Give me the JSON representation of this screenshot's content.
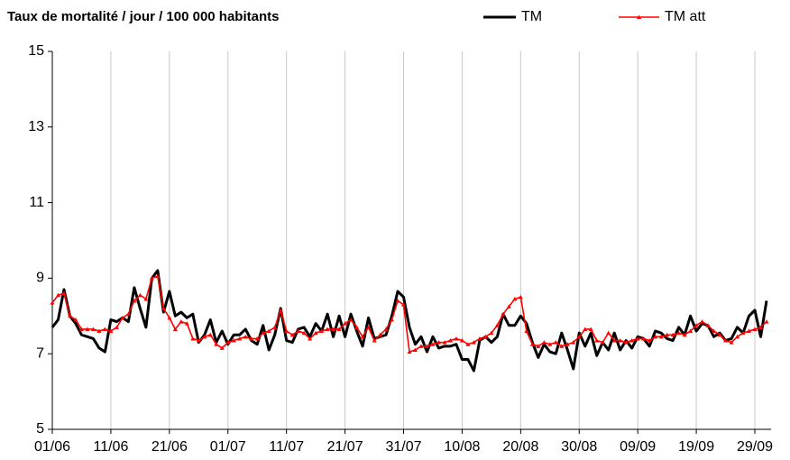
{
  "chart_data": {
    "type": "line",
    "title": "Taux de mortalité / jour / 100 000 habitants",
    "categories": [
      "01/06",
      null,
      null,
      null,
      null,
      null,
      null,
      null,
      null,
      null,
      "11/06",
      null,
      null,
      null,
      null,
      null,
      null,
      null,
      null,
      null,
      "21/06",
      null,
      null,
      null,
      null,
      null,
      null,
      null,
      null,
      null,
      "01/07",
      null,
      null,
      null,
      null,
      null,
      null,
      null,
      null,
      null,
      "11/07",
      null,
      null,
      null,
      null,
      null,
      null,
      null,
      null,
      null,
      "21/07",
      null,
      null,
      null,
      null,
      null,
      null,
      null,
      null,
      null,
      "31/07",
      null,
      null,
      null,
      null,
      null,
      null,
      null,
      null,
      null,
      "10/08",
      null,
      null,
      null,
      null,
      null,
      null,
      null,
      null,
      null,
      "20/08",
      null,
      null,
      null,
      null,
      null,
      null,
      null,
      null,
      null,
      "30/08",
      null,
      null,
      null,
      null,
      null,
      null,
      null,
      null,
      null,
      "09/09",
      null,
      null,
      null,
      null,
      null,
      null,
      null,
      null,
      null,
      "19/09",
      null,
      null,
      null,
      null,
      null,
      null,
      null,
      null,
      null,
      "29/09",
      null,
      null
    ],
    "series": [
      {
        "name": "TM",
        "color": "#000000",
        "values": [
          7.7,
          7.9,
          8.7,
          8.0,
          7.8,
          7.5,
          7.45,
          7.4,
          7.15,
          7.05,
          7.9,
          7.85,
          7.95,
          7.85,
          8.75,
          8.2,
          7.7,
          9.0,
          9.2,
          8.1,
          8.65,
          8.0,
          8.1,
          7.95,
          8.05,
          7.3,
          7.5,
          7.9,
          7.3,
          7.6,
          7.25,
          7.5,
          7.5,
          7.65,
          7.35,
          7.25,
          7.75,
          7.1,
          7.5,
          8.2,
          7.35,
          7.3,
          7.65,
          7.7,
          7.45,
          7.8,
          7.6,
          8.05,
          7.45,
          8.0,
          7.45,
          8.05,
          7.6,
          7.2,
          7.95,
          7.4,
          7.45,
          7.5,
          8.0,
          8.65,
          8.5,
          7.7,
          7.25,
          7.45,
          7.05,
          7.45,
          7.15,
          7.2,
          7.2,
          7.25,
          6.85,
          6.85,
          6.55,
          7.35,
          7.45,
          7.3,
          7.45,
          8.05,
          7.75,
          7.75,
          8.0,
          7.8,
          7.3,
          6.9,
          7.25,
          7.05,
          7.0,
          7.55,
          7.1,
          6.6,
          7.55,
          7.2,
          7.55,
          6.95,
          7.3,
          7.1,
          7.55,
          7.1,
          7.35,
          7.15,
          7.45,
          7.4,
          7.2,
          7.6,
          7.55,
          7.4,
          7.35,
          7.7,
          7.5,
          8.0,
          7.6,
          7.8,
          7.75,
          7.45,
          7.55,
          7.35,
          7.4,
          7.7,
          7.55,
          8.0,
          8.15,
          7.45,
          8.4
        ]
      },
      {
        "name": "TM att",
        "color": "#ff0000",
        "values": [
          8.35,
          8.55,
          8.6,
          8.0,
          7.9,
          7.65,
          7.65,
          7.65,
          7.6,
          7.65,
          7.6,
          7.7,
          7.95,
          8.05,
          8.4,
          8.55,
          8.45,
          9.0,
          9.05,
          8.2,
          7.95,
          7.65,
          7.85,
          7.8,
          7.4,
          7.35,
          7.45,
          7.5,
          7.25,
          7.15,
          7.3,
          7.35,
          7.4,
          7.45,
          7.4,
          7.4,
          7.55,
          7.6,
          7.7,
          8.15,
          7.6,
          7.5,
          7.6,
          7.55,
          7.4,
          7.55,
          7.6,
          7.65,
          7.65,
          7.65,
          7.8,
          7.9,
          7.7,
          7.45,
          7.7,
          7.35,
          7.5,
          7.65,
          7.9,
          8.4,
          8.3,
          7.05,
          7.1,
          7.2,
          7.2,
          7.25,
          7.3,
          7.3,
          7.35,
          7.4,
          7.35,
          7.25,
          7.3,
          7.4,
          7.45,
          7.55,
          7.75,
          8.05,
          8.25,
          8.45,
          8.5,
          7.6,
          7.25,
          7.2,
          7.3,
          7.25,
          7.3,
          7.2,
          7.25,
          7.3,
          7.45,
          7.65,
          7.65,
          7.35,
          7.3,
          7.55,
          7.35,
          7.35,
          7.3,
          7.35,
          7.4,
          7.4,
          7.35,
          7.45,
          7.45,
          7.5,
          7.5,
          7.55,
          7.5,
          7.6,
          7.75,
          7.85,
          7.75,
          7.6,
          7.5,
          7.35,
          7.3,
          7.45,
          7.55,
          7.6,
          7.65,
          7.7,
          7.85
        ]
      }
    ],
    "ylim": [
      5,
      15
    ],
    "yticks": [
      5,
      7,
      9,
      11,
      13,
      15
    ],
    "grid": "x"
  }
}
